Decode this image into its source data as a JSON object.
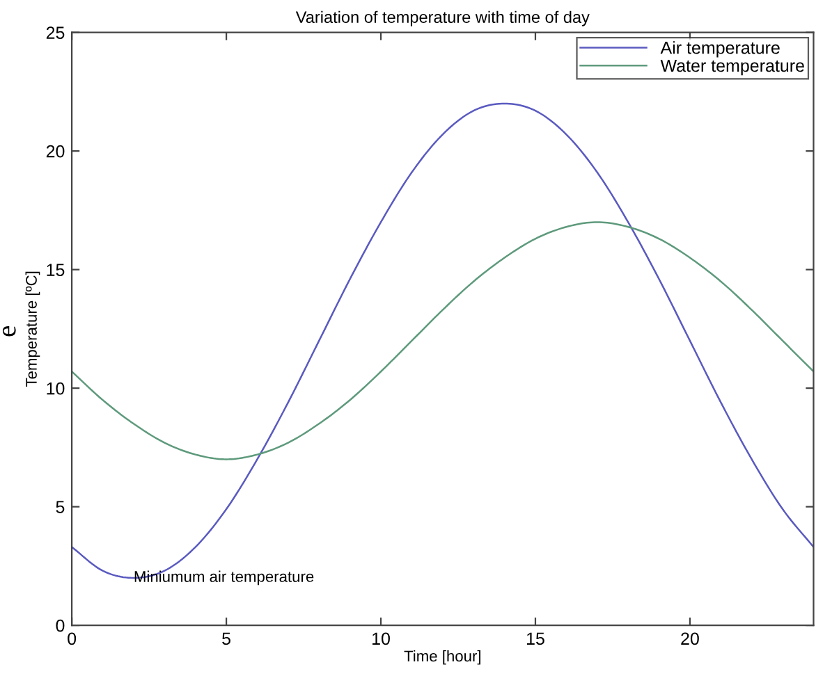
{
  "chart_data": {
    "type": "line",
    "title": "Variation of temperature with time of day",
    "xlabel": "Time [hour]",
    "ylabel": "Temperature [ºC]",
    "x": [
      0,
      1,
      2,
      3,
      4,
      5,
      6,
      7,
      8,
      9,
      10,
      11,
      12,
      13,
      14,
      15,
      16,
      17,
      18,
      19,
      20,
      21,
      22,
      23,
      24
    ],
    "series": [
      {
        "name": "Air temperature",
        "color": "#5a5ac0",
        "values": [
          3.3,
          2.3,
          2,
          2.3,
          3.3,
          4.9,
          7,
          9.4,
          12,
          14.6,
          17,
          19.1,
          20.7,
          21.7,
          22,
          21.7,
          20.7,
          19.1,
          17,
          14.6,
          12,
          9.4,
          7,
          4.9,
          3.3
        ]
      },
      {
        "name": "Water temperature",
        "color": "#5e9a7c",
        "values": [
          10.7,
          9.5,
          8.5,
          7.7,
          7.2,
          7,
          7.2,
          7.7,
          8.5,
          9.5,
          10.7,
          12,
          13.3,
          14.5,
          15.5,
          16.3,
          16.8,
          17,
          16.8,
          16.3,
          15.5,
          14.5,
          13.3,
          12,
          10.7
        ]
      }
    ],
    "xlim": [
      0,
      24
    ],
    "ylim": [
      0,
      25
    ],
    "xticks": [
      0,
      5,
      10,
      15,
      20
    ],
    "yticks": [
      0,
      5,
      10,
      15,
      20,
      25
    ],
    "grid": false,
    "legend": "top right",
    "marker": "none",
    "line_style": "solid",
    "annotations": [
      {
        "text": "Miniumum air temperature",
        "x": 2,
        "y": 2
      },
      "e"
    ]
  }
}
